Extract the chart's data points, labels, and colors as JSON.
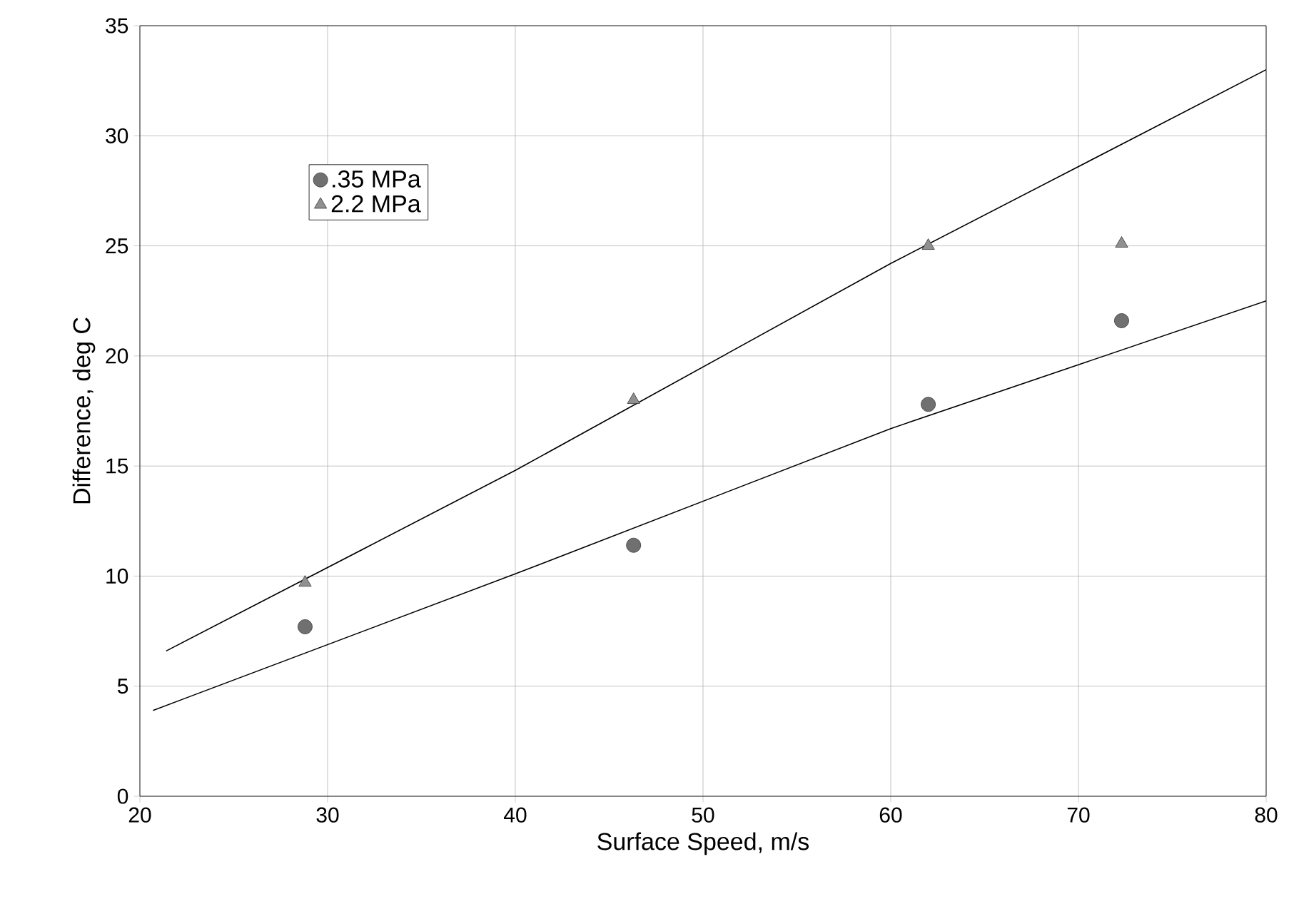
{
  "chart_data": {
    "type": "scatter",
    "xlabel": "Surface Speed, m/s",
    "ylabel": "Difference, deg C",
    "xlim": [
      20,
      80
    ],
    "ylim": [
      0,
      35
    ],
    "xticks": [
      20,
      30,
      40,
      50,
      60,
      70,
      80
    ],
    "yticks": [
      0,
      5,
      10,
      15,
      20,
      25,
      30,
      35
    ],
    "grid": true,
    "legend": "top left",
    "series": [
      {
        "name": ".35 MPa",
        "marker": "circle",
        "color": "#707070",
        "x": [
          28.8,
          46.3,
          62,
          72.3
        ],
        "values": [
          7.7,
          11.4,
          17.8,
          21.6
        ]
      },
      {
        "name": "2.2 MPa",
        "marker": "triangle",
        "color": "#909090",
        "x": [
          28.8,
          46.3,
          62,
          72.3
        ],
        "values": [
          9.7,
          18.0,
          25.0,
          25.1
        ]
      },
      {
        "type": "line",
        "marker": "none",
        "color": "#000000",
        "x": [
          20.7,
          40,
          60,
          80
        ],
        "values": [
          3.9,
          10.1,
          16.7,
          22.5
        ]
      },
      {
        "type": "line",
        "marker": "none",
        "color": "#000000",
        "x": [
          21.4,
          40,
          60,
          80
        ],
        "values": [
          6.6,
          14.8,
          24.2,
          33.0
        ]
      }
    ]
  }
}
